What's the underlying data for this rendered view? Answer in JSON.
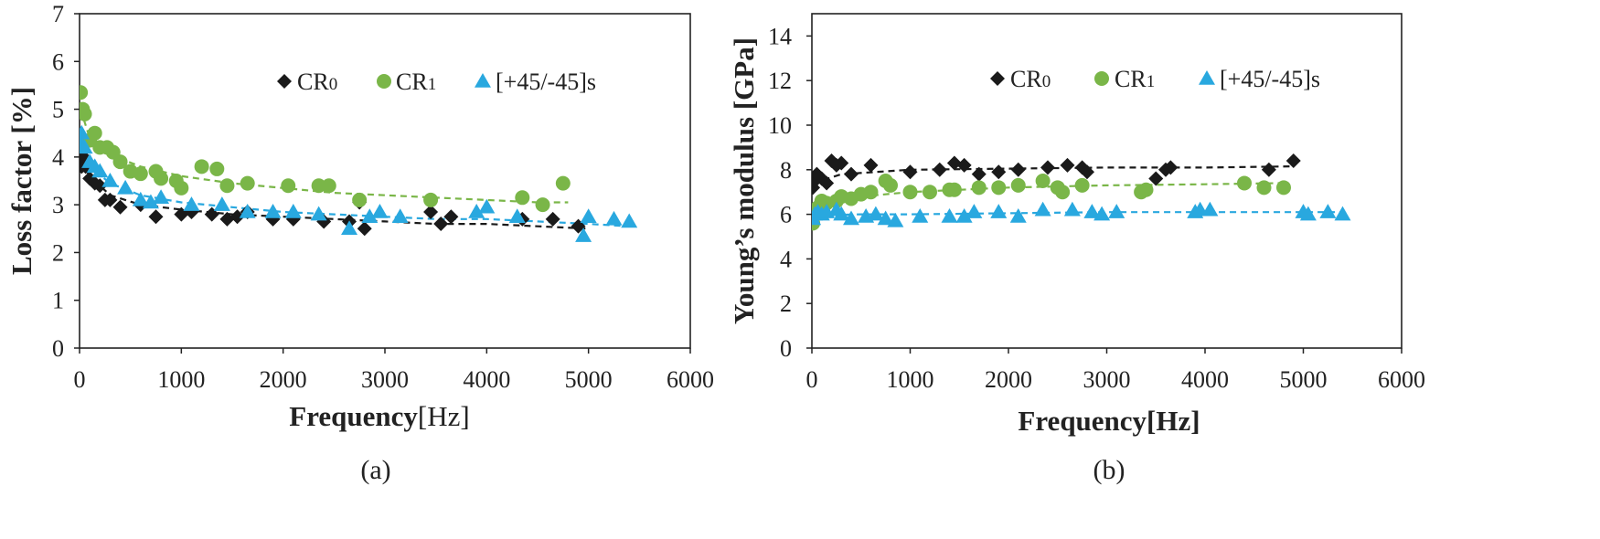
{
  "colors": {
    "cr0": "#1a1a1a",
    "cr1": "#7ab648",
    "pm45": "#29a8df",
    "axis": "#222222"
  },
  "chart_data": [
    {
      "id": "a",
      "type": "scatter",
      "caption": "(a)",
      "title": "",
      "xlabel": {
        "bold": "Frequency",
        "normal": "[Hz]"
      },
      "ylabel": "Loss factor [%]",
      "xlim": [
        0,
        6000
      ],
      "ylim": [
        0,
        7
      ],
      "xticks": [
        "0",
        "1000",
        "2000",
        "3000",
        "4000",
        "5000",
        "6000"
      ],
      "xtick_values": [
        0,
        1000,
        2000,
        3000,
        4000,
        5000,
        6000
      ],
      "yticks": [
        "0",
        "1",
        "2",
        "3",
        "4",
        "5",
        "6",
        "7"
      ],
      "ytick_values": [
        0,
        1,
        2,
        3,
        4,
        5,
        6,
        7
      ],
      "legend": [
        {
          "base": "CR",
          "sub": "0",
          "key": "cr0"
        },
        {
          "base": "CR",
          "sub": "1",
          "key": "cr1"
        },
        {
          "base": "[+45/-45]s",
          "sub": "",
          "key": "pm45"
        }
      ],
      "series": [
        {
          "key": "cr0",
          "name": "CR0",
          "marker": "diamond",
          "points": [
            [
              20,
              3.8
            ],
            [
              40,
              4.0
            ],
            [
              60,
              3.8
            ],
            [
              100,
              3.55
            ],
            [
              150,
              3.45
            ],
            [
              200,
              3.4
            ],
            [
              250,
              3.1
            ],
            [
              300,
              3.1
            ],
            [
              400,
              2.95
            ],
            [
              600,
              3.0
            ],
            [
              750,
              2.75
            ],
            [
              1000,
              2.8
            ],
            [
              1100,
              2.85
            ],
            [
              1300,
              2.8
            ],
            [
              1450,
              2.7
            ],
            [
              1550,
              2.75
            ],
            [
              1650,
              2.85
            ],
            [
              1900,
              2.7
            ],
            [
              2100,
              2.7
            ],
            [
              2400,
              2.65
            ],
            [
              2650,
              2.65
            ],
            [
              2800,
              2.5
            ],
            [
              2750,
              3.05
            ],
            [
              3450,
              2.85
            ],
            [
              3550,
              2.6
            ],
            [
              3650,
              2.75
            ],
            [
              4350,
              2.7
            ],
            [
              4650,
              2.7
            ],
            [
              4900,
              2.55
            ]
          ],
          "trend": [
            [
              20,
              3.9
            ],
            [
              100,
              3.6
            ],
            [
              300,
              3.2
            ],
            [
              600,
              3.0
            ],
            [
              1000,
              2.9
            ],
            [
              1500,
              2.8
            ],
            [
              2000,
              2.75
            ],
            [
              2500,
              2.7
            ],
            [
              3000,
              2.65
            ],
            [
              3500,
              2.6
            ],
            [
              4000,
              2.6
            ],
            [
              4500,
              2.55
            ],
            [
              5000,
              2.5
            ]
          ]
        },
        {
          "key": "cr1",
          "name": "CR1",
          "marker": "circle",
          "points": [
            [
              10,
              5.35
            ],
            [
              30,
              5.0
            ],
            [
              50,
              4.9
            ],
            [
              100,
              4.35
            ],
            [
              150,
              4.5
            ],
            [
              200,
              4.2
            ],
            [
              270,
              4.2
            ],
            [
              330,
              4.1
            ],
            [
              400,
              3.9
            ],
            [
              500,
              3.7
            ],
            [
              600,
              3.65
            ],
            [
              750,
              3.7
            ],
            [
              800,
              3.55
            ],
            [
              950,
              3.5
            ],
            [
              1000,
              3.35
            ],
            [
              1200,
              3.8
            ],
            [
              1350,
              3.75
            ],
            [
              1450,
              3.4
            ],
            [
              1650,
              3.45
            ],
            [
              2050,
              3.4
            ],
            [
              2350,
              3.4
            ],
            [
              2450,
              3.4
            ],
            [
              2750,
              3.1
            ],
            [
              3450,
              3.1
            ],
            [
              4350,
              3.15
            ],
            [
              4550,
              3.0
            ],
            [
              4750,
              3.45
            ]
          ],
          "trend": [
            [
              10,
              5.0
            ],
            [
              100,
              4.4
            ],
            [
              300,
              4.05
            ],
            [
              600,
              3.8
            ],
            [
              1000,
              3.6
            ],
            [
              1500,
              3.45
            ],
            [
              2000,
              3.35
            ],
            [
              2500,
              3.25
            ],
            [
              3000,
              3.2
            ],
            [
              3500,
              3.15
            ],
            [
              4000,
              3.1
            ],
            [
              4500,
              3.05
            ],
            [
              4800,
              3.05
            ]
          ]
        },
        {
          "key": "pm45",
          "name": "[+45/-45]s",
          "marker": "triangle",
          "points": [
            [
              10,
              4.3
            ],
            [
              20,
              4.5
            ],
            [
              50,
              4.2
            ],
            [
              100,
              3.9
            ],
            [
              150,
              3.8
            ],
            [
              200,
              3.7
            ],
            [
              300,
              3.5
            ],
            [
              450,
              3.35
            ],
            [
              600,
              3.1
            ],
            [
              700,
              3.05
            ],
            [
              800,
              3.15
            ],
            [
              1100,
              3.0
            ],
            [
              1400,
              3.0
            ],
            [
              1650,
              2.85
            ],
            [
              1900,
              2.85
            ],
            [
              2100,
              2.85
            ],
            [
              2350,
              2.8
            ],
            [
              2650,
              2.5
            ],
            [
              2850,
              2.75
            ],
            [
              2950,
              2.85
            ],
            [
              3150,
              2.75
            ],
            [
              3900,
              2.85
            ],
            [
              4000,
              2.95
            ],
            [
              4300,
              2.75
            ],
            [
              4950,
              2.35
            ],
            [
              5000,
              2.75
            ],
            [
              5250,
              2.7
            ],
            [
              5400,
              2.65
            ]
          ],
          "trend": [
            [
              10,
              4.3
            ],
            [
              100,
              3.8
            ],
            [
              300,
              3.45
            ],
            [
              600,
              3.2
            ],
            [
              1000,
              3.05
            ],
            [
              1500,
              2.95
            ],
            [
              2000,
              2.85
            ],
            [
              2500,
              2.8
            ],
            [
              3000,
              2.75
            ],
            [
              3500,
              2.7
            ],
            [
              4000,
              2.7
            ],
            [
              4500,
              2.65
            ],
            [
              5000,
              2.6
            ],
            [
              5400,
              2.55
            ]
          ]
        }
      ]
    },
    {
      "id": "b",
      "type": "scatter",
      "caption": "(b)",
      "title": "",
      "xlabel": {
        "bold": "Frequency[Hz]",
        "normal": ""
      },
      "ylabel": "Young’s modulus [GPa]",
      "xlim": [
        0,
        6000
      ],
      "ylim": [
        0,
        15
      ],
      "xticks": [
        "0",
        "1000",
        "2000",
        "3000",
        "4000",
        "5000",
        "6000"
      ],
      "xtick_values": [
        0,
        1000,
        2000,
        3000,
        4000,
        5000,
        6000
      ],
      "yticks": [
        "0",
        "2",
        "4",
        "6",
        "8",
        "10",
        "12",
        "14"
      ],
      "ytick_values": [
        0,
        2,
        4,
        6,
        8,
        10,
        12,
        14
      ],
      "legend": [
        {
          "base": "CR",
          "sub": "0",
          "key": "cr0"
        },
        {
          "base": "CR",
          "sub": "1",
          "key": "cr1"
        },
        {
          "base": "[+45/-45]s",
          "sub": "",
          "key": "pm45"
        }
      ],
      "series": [
        {
          "key": "cr0",
          "name": "CR0",
          "marker": "diamond",
          "points": [
            [
              10,
              7.2
            ],
            [
              30,
              7.5
            ],
            [
              50,
              7.8
            ],
            [
              100,
              7.6
            ],
            [
              150,
              7.4
            ],
            [
              200,
              8.4
            ],
            [
              250,
              8.2
            ],
            [
              300,
              8.3
            ],
            [
              400,
              7.8
            ],
            [
              600,
              8.2
            ],
            [
              1000,
              7.9
            ],
            [
              1300,
              8.0
            ],
            [
              1450,
              8.3
            ],
            [
              1550,
              8.2
            ],
            [
              1700,
              7.8
            ],
            [
              1900,
              7.9
            ],
            [
              2100,
              8.0
            ],
            [
              2400,
              8.1
            ],
            [
              2600,
              8.2
            ],
            [
              2750,
              8.1
            ],
            [
              2800,
              7.9
            ],
            [
              3500,
              7.6
            ],
            [
              3600,
              8.0
            ],
            [
              3650,
              8.1
            ],
            [
              4650,
              8.0
            ],
            [
              4900,
              8.4
            ]
          ],
          "trend": [
            [
              10,
              7.4
            ],
            [
              300,
              7.8
            ],
            [
              1000,
              8.0
            ],
            [
              2000,
              8.05
            ],
            [
              3000,
              8.1
            ],
            [
              4000,
              8.1
            ],
            [
              4900,
              8.15
            ]
          ]
        },
        {
          "key": "cr1",
          "name": "CR1",
          "marker": "circle",
          "points": [
            [
              10,
              5.6
            ],
            [
              30,
              6.0
            ],
            [
              60,
              6.3
            ],
            [
              100,
              6.6
            ],
            [
              150,
              6.5
            ],
            [
              250,
              6.6
            ],
            [
              300,
              6.8
            ],
            [
              400,
              6.7
            ],
            [
              500,
              6.9
            ],
            [
              600,
              7.0
            ],
            [
              750,
              7.5
            ],
            [
              800,
              7.3
            ],
            [
              1000,
              7.0
            ],
            [
              1200,
              7.0
            ],
            [
              1400,
              7.1
            ],
            [
              1450,
              7.1
            ],
            [
              1700,
              7.2
            ],
            [
              1900,
              7.2
            ],
            [
              2100,
              7.3
            ],
            [
              2350,
              7.5
            ],
            [
              2500,
              7.2
            ],
            [
              2550,
              7.0
            ],
            [
              2750,
              7.3
            ],
            [
              3350,
              7.0
            ],
            [
              3400,
              7.1
            ],
            [
              4400,
              7.4
            ],
            [
              4600,
              7.2
            ],
            [
              4800,
              7.2
            ]
          ],
          "trend": [
            [
              10,
              5.8
            ],
            [
              150,
              6.4
            ],
            [
              500,
              6.8
            ],
            [
              1000,
              7.0
            ],
            [
              2000,
              7.2
            ],
            [
              3000,
              7.3
            ],
            [
              4000,
              7.35
            ],
            [
              4800,
              7.4
            ]
          ]
        },
        {
          "key": "pm45",
          "name": "[+45/-45]s",
          "marker": "triangle",
          "points": [
            [
              10,
              5.8
            ],
            [
              30,
              6.0
            ],
            [
              60,
              6.1
            ],
            [
              100,
              6.0
            ],
            [
              150,
              6.1
            ],
            [
              250,
              6.2
            ],
            [
              300,
              6.0
            ],
            [
              400,
              5.8
            ],
            [
              550,
              5.9
            ],
            [
              650,
              6.0
            ],
            [
              750,
              5.8
            ],
            [
              850,
              5.7
            ],
            [
              1100,
              5.9
            ],
            [
              1400,
              5.9
            ],
            [
              1550,
              5.9
            ],
            [
              1650,
              6.1
            ],
            [
              1900,
              6.1
            ],
            [
              2100,
              5.9
            ],
            [
              2350,
              6.2
            ],
            [
              2650,
              6.2
            ],
            [
              2850,
              6.1
            ],
            [
              2950,
              6.0
            ],
            [
              3100,
              6.1
            ],
            [
              3900,
              6.1
            ],
            [
              3950,
              6.2
            ],
            [
              4050,
              6.2
            ],
            [
              5000,
              6.1
            ],
            [
              5050,
              6.0
            ],
            [
              5250,
              6.1
            ],
            [
              5400,
              6.0
            ]
          ],
          "trend": [
            [
              10,
              5.95
            ],
            [
              500,
              6.0
            ],
            [
              1000,
              6.0
            ],
            [
              2000,
              6.05
            ],
            [
              3000,
              6.1
            ],
            [
              4000,
              6.1
            ],
            [
              5000,
              6.1
            ],
            [
              5400,
              6.1
            ]
          ]
        }
      ]
    }
  ]
}
